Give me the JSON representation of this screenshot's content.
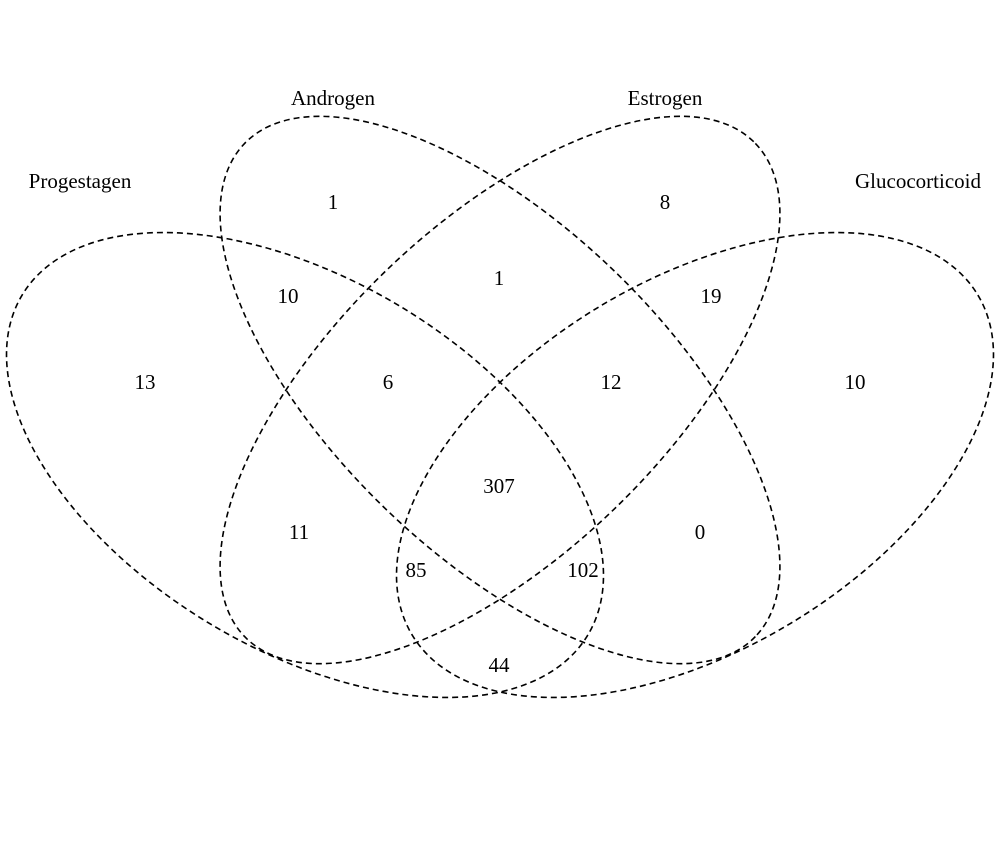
{
  "sets": {
    "progestagen": "Progestagen",
    "androgen": "Androgen",
    "estrogen": "Estrogen",
    "glucocorticoid": "Glucocorticoid"
  },
  "counts": {
    "progestagen_only": "13",
    "androgen_only": "1",
    "estrogen_only": "8",
    "glucocorticoid_only": "10",
    "progestagen_androgen": "10",
    "androgen_estrogen": "1",
    "estrogen_glucocorticoid": "19",
    "progestagen_androgen_estrogen": "6",
    "androgen_estrogen_glucocorticoid": "12",
    "all_four": "307",
    "progestagen_estrogen": "11",
    "progestagen_estrogen_glucocorticoid": "85",
    "progestagen_androgen_glucocorticoid": "102",
    "androgen_glucocorticoid": "0",
    "progestagen_glucocorticoid": "44"
  },
  "style": {
    "line_color": "#000000",
    "text_color": "#000000",
    "background": "#ffffff"
  }
}
